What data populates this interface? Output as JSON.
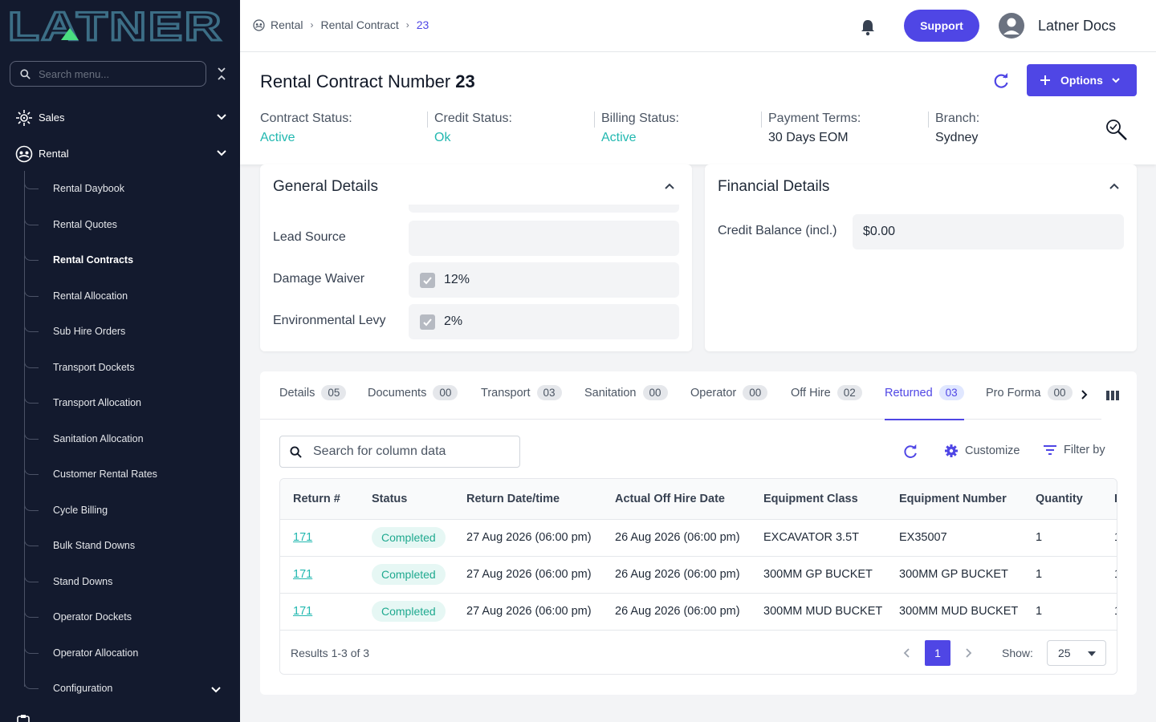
{
  "sidebar": {
    "logo_text": "LATNER",
    "search_placeholder": "Search menu...",
    "top_items": [
      {
        "label": "Sales",
        "icon": "sales-icon"
      },
      {
        "label": "Rental",
        "icon": "rental-icon"
      }
    ],
    "sub_items": [
      {
        "label": "Rental Daybook"
      },
      {
        "label": "Rental Quotes"
      },
      {
        "label": "Rental Contracts",
        "active": true
      },
      {
        "label": "Rental Allocation"
      },
      {
        "label": "Sub Hire Orders"
      },
      {
        "label": "Transport Dockets"
      },
      {
        "label": "Transport Allocation"
      },
      {
        "label": "Sanitation Allocation"
      },
      {
        "label": "Customer Rental Rates"
      },
      {
        "label": "Cycle Billing"
      },
      {
        "label": "Bulk Stand Downs"
      },
      {
        "label": "Stand Downs"
      },
      {
        "label": "Operator Dockets"
      },
      {
        "label": "Operator Allocation"
      },
      {
        "label": "Configuration"
      }
    ]
  },
  "header": {
    "breadcrumb": [
      "Rental",
      "Rental Contract",
      "23"
    ],
    "support_label": "Support",
    "user_name": "Latner Docs"
  },
  "contract": {
    "title": "Rental Contract Number",
    "number": "23",
    "options_label": "Options",
    "statuses": [
      {
        "label": "Contract Status:",
        "value": "Active",
        "tone": "green"
      },
      {
        "label": "Credit Status:",
        "value": "Ok",
        "tone": "green"
      },
      {
        "label": "Billing Status:",
        "value": "Active",
        "tone": "green"
      },
      {
        "label": "Payment Terms:",
        "value": "30 Days EOM",
        "tone": "dark"
      },
      {
        "label": "Branch:",
        "value": "Sydney",
        "tone": "dark"
      }
    ]
  },
  "general": {
    "title": "General Details",
    "fields": [
      {
        "label": "Lead Source",
        "value": "",
        "checkbox": false
      },
      {
        "label": "Damage Waiver",
        "value": "12%",
        "checkbox": true
      },
      {
        "label": "Environmental Levy",
        "value": "2%",
        "checkbox": true
      }
    ]
  },
  "financial": {
    "title": "Financial Details",
    "credit_label": "Credit Balance (incl.)",
    "credit_value": "$0.00"
  },
  "tabs": [
    {
      "label": "Details",
      "count": "05"
    },
    {
      "label": "Documents",
      "count": "00"
    },
    {
      "label": "Transport",
      "count": "03"
    },
    {
      "label": "Sanitation",
      "count": "00"
    },
    {
      "label": "Operator",
      "count": "00"
    },
    {
      "label": "Off Hire",
      "count": "02"
    },
    {
      "label": "Returned",
      "count": "03",
      "active": true
    },
    {
      "label": "Pro Forma",
      "count": "00"
    }
  ],
  "table": {
    "search_placeholder": "Search for column data",
    "customize_label": "Customize",
    "filter_label": "Filter by",
    "columns": [
      "Return #",
      "Status",
      "Return Date/time",
      "Actual Off Hire Date",
      "Equipment Class",
      "Equipment Number",
      "Quantity",
      "I"
    ],
    "rows": [
      {
        "return_no": "171",
        "status": "Completed",
        "return_date": "27 Aug 2026 (06:00 pm)",
        "off_hire": "26 Aug 2026 (06:00 pm)",
        "eq_class": "EXCAVATOR 3.5T",
        "eq_number": "EX35007",
        "qty": "1",
        "extra": "1"
      },
      {
        "return_no": "171",
        "status": "Completed",
        "return_date": "27 Aug 2026 (06:00 pm)",
        "off_hire": "26 Aug 2026 (06:00 pm)",
        "eq_class": "300MM GP BUCKET",
        "eq_number": "300MM GP BUCKET",
        "qty": "1",
        "extra": "1"
      },
      {
        "return_no": "171",
        "status": "Completed",
        "return_date": "27 Aug 2026 (06:00 pm)",
        "off_hire": "26 Aug 2026 (06:00 pm)",
        "eq_class": "300MM MUD BUCKET",
        "eq_number": "300MM MUD BUCKET",
        "qty": "1",
        "extra": "1"
      }
    ],
    "results_text": "Results 1-3 of 3",
    "current_page": "1",
    "show_label": "Show:",
    "page_size": "25"
  },
  "colors": {
    "accent": "#4f46e5",
    "sidebar_bg": "#131a2e",
    "status_green": "#22b8b0"
  }
}
